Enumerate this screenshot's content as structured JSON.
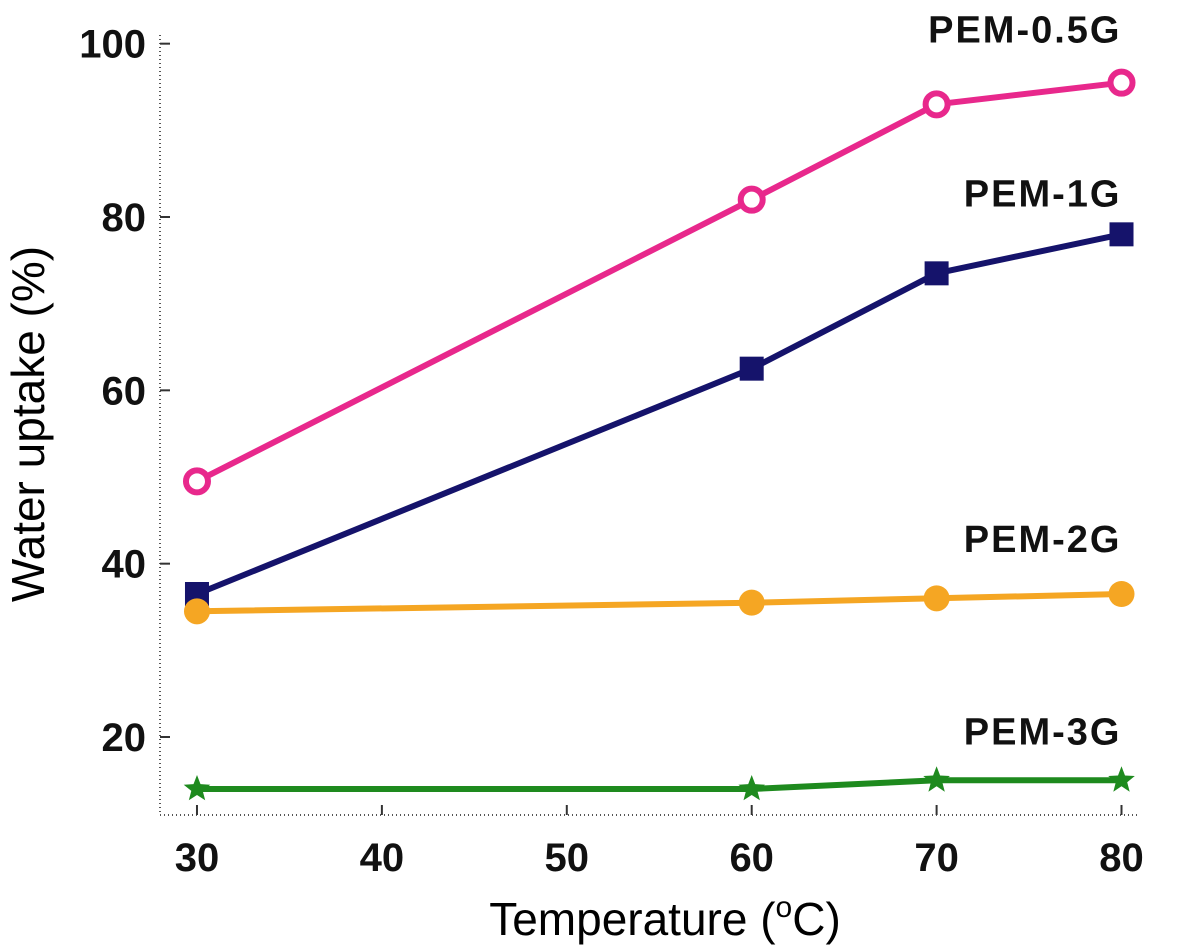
{
  "chart_data": {
    "type": "line",
    "title": "",
    "xlabel": "Temperature (",
    "xlabel_sup": "o",
    "xlabel_unit": "C)",
    "ylabel": "Water uptake (%)",
    "xlim": [
      28,
      81
    ],
    "ylim": [
      11,
      101
    ],
    "x_ticks": [
      30,
      40,
      50,
      60,
      70,
      80
    ],
    "y_ticks": [
      20,
      40,
      60,
      80,
      100
    ],
    "grid": false,
    "legend": "direct labels at right end of each series",
    "series": [
      {
        "name": "PEM-0.5G",
        "color": "#e8288c",
        "marker": "circle-open",
        "x": [
          30,
          60,
          70,
          80
        ],
        "y": [
          49.5,
          82,
          93,
          95.5
        ]
      },
      {
        "name": "PEM-1G",
        "color": "#15136b",
        "marker": "square",
        "x": [
          30,
          60,
          70,
          80
        ],
        "y": [
          36.5,
          62.5,
          73.5,
          78
        ]
      },
      {
        "name": "PEM-2G",
        "color": "#f5a623",
        "marker": "circle",
        "x": [
          30,
          60,
          70,
          80
        ],
        "y": [
          34.5,
          35.5,
          36,
          36.5
        ]
      },
      {
        "name": "PEM-3G",
        "color": "#1e8a1e",
        "marker": "star",
        "x": [
          30,
          60,
          70,
          80
        ],
        "y": [
          14,
          14,
          15,
          15
        ]
      }
    ]
  }
}
